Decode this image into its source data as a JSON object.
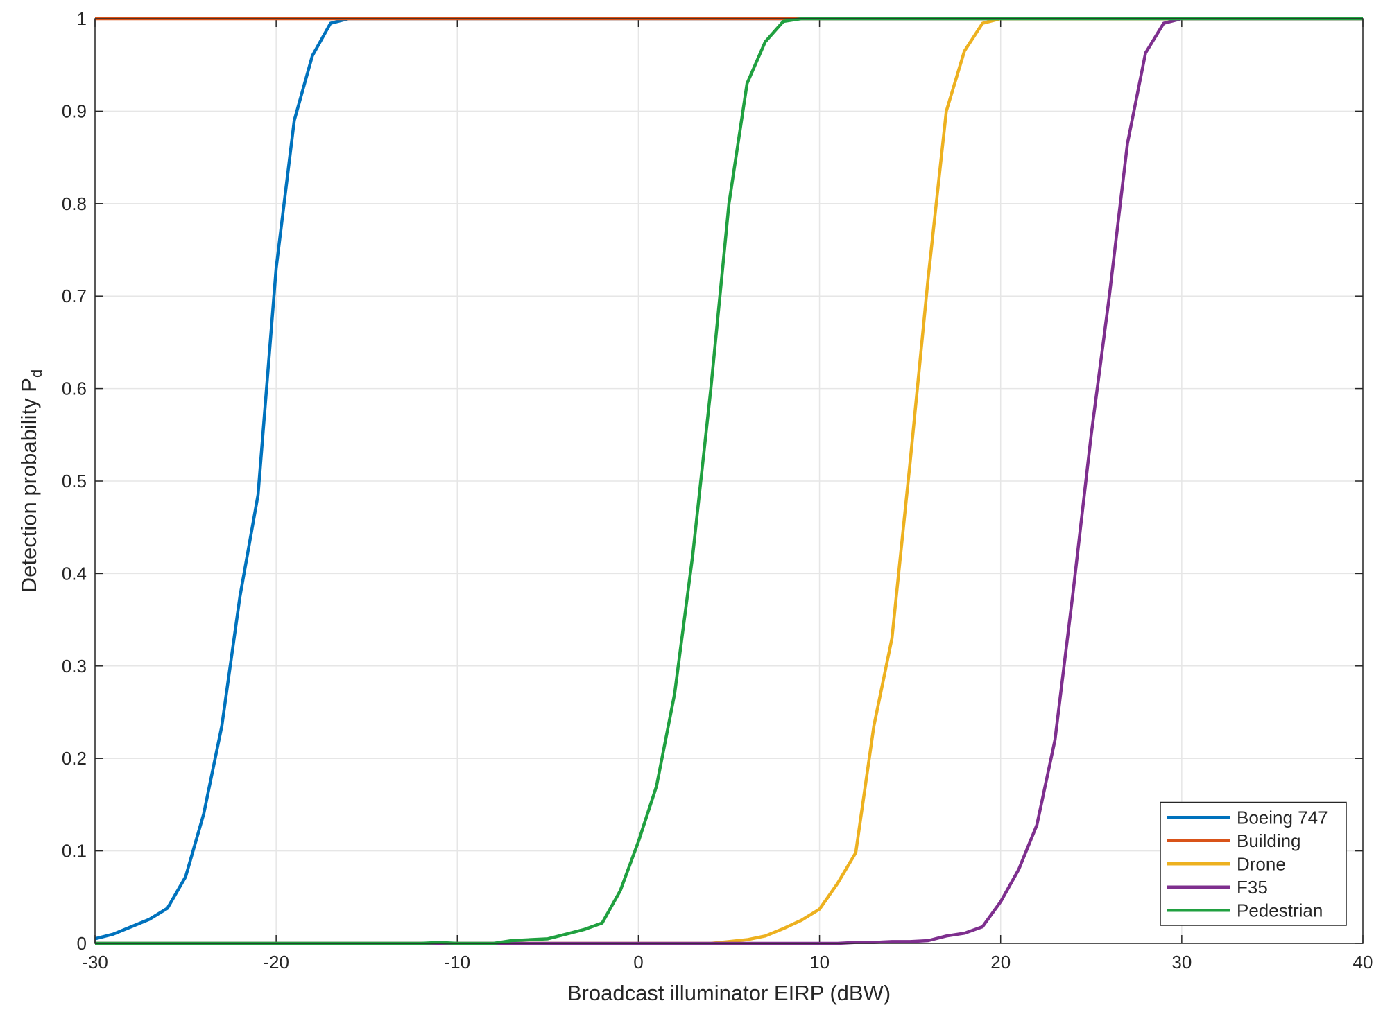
{
  "chart_data": {
    "type": "line",
    "x_label": "Broadcast illuminator EIRP (dBW)",
    "y_label": "Detection probability P",
    "y_label_subscript": "d",
    "x": [
      -30,
      -29,
      -28,
      -27,
      -26,
      -25,
      -24,
      -23,
      -22,
      -21,
      -20,
      -19,
      -18,
      -17,
      -16,
      -15,
      -14,
      -13,
      -12,
      -11,
      -10,
      -9,
      -8,
      -7,
      -6,
      -5,
      -4,
      -3,
      -2,
      -1,
      0,
      1,
      2,
      3,
      4,
      5,
      6,
      7,
      8,
      9,
      10,
      11,
      12,
      13,
      14,
      15,
      16,
      17,
      18,
      19,
      20,
      21,
      22,
      23,
      24,
      25,
      26,
      27,
      28,
      29,
      30,
      31,
      32,
      33,
      34,
      35,
      36,
      37,
      38,
      39,
      40
    ],
    "series": [
      {
        "name": "Boeing 747",
        "color": "#0072bd",
        "values": [
          0.005,
          0.01,
          0.018,
          0.026,
          0.038,
          0.072,
          0.14,
          0.235,
          0.375,
          0.485,
          0.73,
          0.89,
          0.96,
          0.995,
          1,
          1,
          1,
          1,
          1,
          1,
          1,
          1,
          1,
          1,
          1,
          1,
          1,
          1,
          1,
          1,
          1,
          1,
          1,
          1,
          1,
          1,
          1,
          1,
          1,
          1,
          1,
          1,
          1,
          1,
          1,
          1,
          1,
          1,
          1,
          1,
          1,
          1,
          1,
          1,
          1,
          1,
          1,
          1,
          1,
          1,
          1,
          1,
          1,
          1,
          1,
          1,
          1,
          1,
          1,
          1,
          1
        ]
      },
      {
        "name": "Building",
        "color": "#d95319",
        "values": [
          1,
          1,
          1,
          1,
          1,
          1,
          1,
          1,
          1,
          1,
          1,
          1,
          1,
          1,
          1,
          1,
          1,
          1,
          1,
          1,
          1,
          1,
          1,
          1,
          1,
          1,
          1,
          1,
          1,
          1,
          1,
          1,
          1,
          1,
          1,
          1,
          1,
          1,
          1,
          1,
          1,
          1,
          1,
          1,
          1,
          1,
          1,
          1,
          1,
          1,
          1,
          1,
          1,
          1,
          1,
          1,
          1,
          1,
          1,
          1,
          1,
          1,
          1,
          1,
          1,
          1,
          1,
          1,
          1,
          1,
          1
        ]
      },
      {
        "name": "Drone",
        "color": "#edb120",
        "values": [
          0,
          0,
          0,
          0,
          0,
          0,
          0,
          0,
          0,
          0,
          0,
          0,
          0,
          0,
          0,
          0,
          0,
          0,
          0,
          0,
          0,
          0,
          0,
          0,
          0,
          0,
          0,
          0,
          0,
          0,
          0,
          0,
          0,
          0,
          0,
          0.002,
          0.004,
          0.008,
          0.016,
          0.025,
          0.037,
          0.065,
          0.098,
          0.235,
          0.33,
          0.52,
          0.72,
          0.9,
          0.965,
          0.995,
          1,
          1,
          1,
          1,
          1,
          1,
          1,
          1,
          1,
          1,
          1,
          1,
          1,
          1,
          1,
          1,
          1,
          1,
          1,
          1,
          1
        ]
      },
      {
        "name": "F35",
        "color": "#7e2f8e",
        "values": [
          0,
          0,
          0,
          0,
          0,
          0,
          0,
          0,
          0,
          0,
          0,
          0,
          0,
          0,
          0,
          0,
          0,
          0,
          0,
          0,
          0,
          0,
          0,
          0,
          0,
          0,
          0,
          0,
          0,
          0,
          0,
          0,
          0,
          0,
          0,
          0,
          0,
          0,
          0,
          0,
          0,
          0,
          0.001,
          0.001,
          0.002,
          0.002,
          0.003,
          0.008,
          0.011,
          0.018,
          0.045,
          0.08,
          0.128,
          0.22,
          0.38,
          0.55,
          0.7,
          0.865,
          0.963,
          0.995,
          1,
          1,
          1,
          1,
          1,
          1,
          1,
          1,
          1,
          1,
          1
        ]
      },
      {
        "name": "Pedestrian",
        "color": "#20a040",
        "values": [
          0,
          0,
          0,
          0,
          0,
          0,
          0,
          0,
          0,
          0,
          0,
          0,
          0,
          0,
          0,
          0,
          0,
          0,
          0,
          0.001,
          0,
          0,
          0,
          0.003,
          0.004,
          0.005,
          0.01,
          0.015,
          0.022,
          0.057,
          0.11,
          0.17,
          0.27,
          0.42,
          0.6,
          0.8,
          0.93,
          0.975,
          0.997,
          1,
          1,
          1,
          1,
          1,
          1,
          1,
          1,
          1,
          1,
          1,
          1,
          1,
          1,
          1,
          1,
          1,
          1,
          1,
          1,
          1,
          1,
          1,
          1,
          1,
          1,
          1,
          1,
          1,
          1,
          1,
          1
        ]
      }
    ],
    "xlim": [
      -30,
      40
    ],
    "xticks": [
      -30,
      -20,
      -10,
      0,
      10,
      20,
      30,
      40
    ],
    "ylim": [
      0,
      1
    ],
    "yticks": [
      0,
      0.1,
      0.2,
      0.3,
      0.4,
      0.5,
      0.6,
      0.7,
      0.8,
      0.9,
      1
    ],
    "grid": true,
    "legend_location": "southeast"
  }
}
